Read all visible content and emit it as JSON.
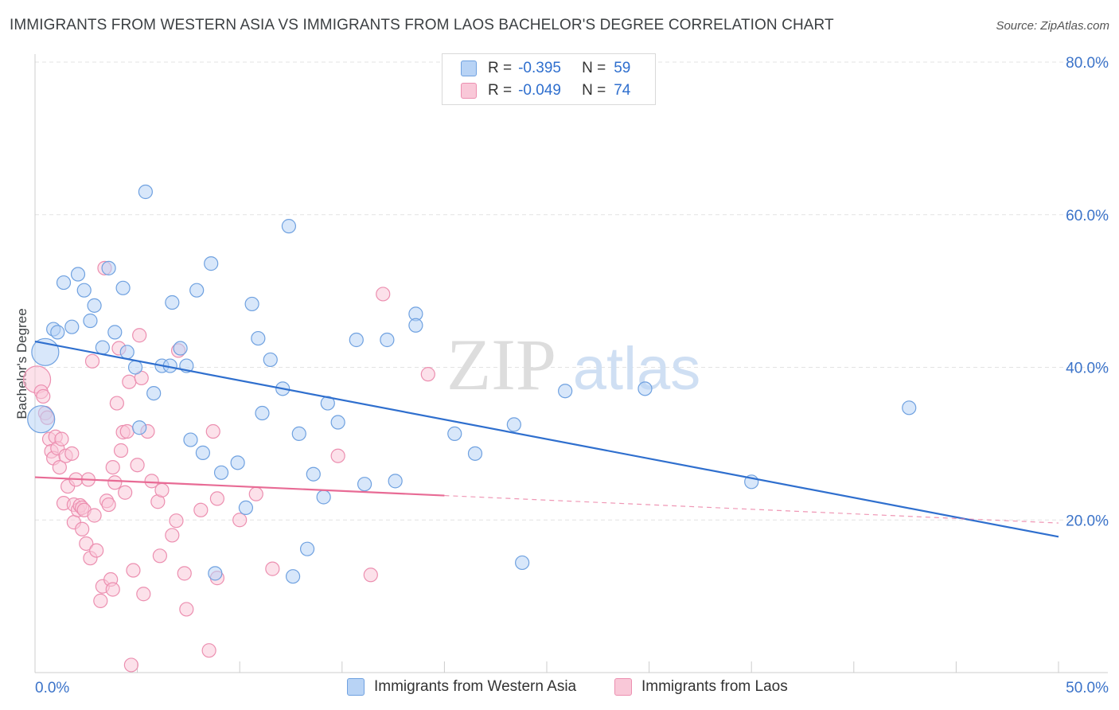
{
  "header": {
    "title": "IMMIGRANTS FROM WESTERN ASIA VS IMMIGRANTS FROM LAOS BACHELOR'S DEGREE CORRELATION CHART",
    "source": "Source: ZipAtlas.com"
  },
  "watermark": {
    "zip": "ZIP",
    "atlas": "atlas"
  },
  "stats": {
    "blue": {
      "r_label": "R =",
      "r_value": "-0.395",
      "n_label": "N =",
      "n_value": "59"
    },
    "pink": {
      "r_label": "R =",
      "r_value": "-0.049",
      "n_label": "N =",
      "n_value": "74"
    }
  },
  "legend": {
    "blue_label": "Immigrants from Western Asia",
    "pink_label": "Immigrants from Laos"
  },
  "colors": {
    "blue_fill": "#b8d3f5",
    "blue_stroke": "#6fa1e0",
    "blue_line": "#2f6fce",
    "pink_fill": "#f9c8d8",
    "pink_stroke": "#ec8fb0",
    "pink_line": "#e86b95",
    "grid": "#e3e3e3",
    "tick_label": "#3b73c9"
  },
  "chart_data": {
    "type": "scatter",
    "title": "IMMIGRANTS FROM WESTERN ASIA VS IMMIGRANTS FROM LAOS BACHELOR'S DEGREE CORRELATION CHART",
    "xlabel": "",
    "ylabel": "Bachelor's Degree",
    "xlim": [
      0,
      50
    ],
    "ylim": [
      0,
      80
    ],
    "x_tick_labels": [
      {
        "value": 0,
        "label": "0.0%"
      },
      {
        "value": 50,
        "label": "50.0%"
      }
    ],
    "x_minor_ticks": [
      0,
      5,
      10,
      15,
      20,
      25,
      30,
      35,
      40,
      45,
      50
    ],
    "y_ticks": [
      {
        "value": 20,
        "label": "20.0%"
      },
      {
        "value": 40,
        "label": "40.0%"
      },
      {
        "value": 60,
        "label": "60.0%"
      },
      {
        "value": 80,
        "label": "80.0%"
      }
    ],
    "grid": true,
    "legend_position": "bottom-center",
    "series": [
      {
        "name": "Immigrants from Western Asia",
        "color": "blue",
        "trend": {
          "x": [
            0,
            50
          ],
          "y": [
            43.4,
            17.8
          ],
          "dashed_from": null
        },
        "points": [
          {
            "x": 0.3,
            "y": 33.2,
            "big": true
          },
          {
            "x": 0.5,
            "y": 42.0,
            "big": true
          },
          {
            "x": 0.9,
            "y": 45.0
          },
          {
            "x": 1.1,
            "y": 44.6
          },
          {
            "x": 1.4,
            "y": 51.1
          },
          {
            "x": 1.8,
            "y": 45.3
          },
          {
            "x": 2.1,
            "y": 52.2
          },
          {
            "x": 2.4,
            "y": 50.1
          },
          {
            "x": 2.7,
            "y": 46.1
          },
          {
            "x": 2.9,
            "y": 48.1
          },
          {
            "x": 3.3,
            "y": 42.6
          },
          {
            "x": 3.6,
            "y": 53.0
          },
          {
            "x": 3.9,
            "y": 44.6
          },
          {
            "x": 4.3,
            "y": 50.4
          },
          {
            "x": 4.5,
            "y": 42.0
          },
          {
            "x": 4.9,
            "y": 40.0
          },
          {
            "x": 5.1,
            "y": 32.1
          },
          {
            "x": 5.4,
            "y": 63.0
          },
          {
            "x": 5.8,
            "y": 36.6
          },
          {
            "x": 6.2,
            "y": 40.2
          },
          {
            "x": 6.6,
            "y": 40.2
          },
          {
            "x": 6.7,
            "y": 48.5
          },
          {
            "x": 7.1,
            "y": 42.5
          },
          {
            "x": 7.4,
            "y": 40.2
          },
          {
            "x": 7.6,
            "y": 30.5
          },
          {
            "x": 7.9,
            "y": 50.1
          },
          {
            "x": 8.2,
            "y": 28.8
          },
          {
            "x": 8.6,
            "y": 53.6
          },
          {
            "x": 8.8,
            "y": 13.0
          },
          {
            "x": 9.1,
            "y": 26.2
          },
          {
            "x": 9.9,
            "y": 27.5
          },
          {
            "x": 10.3,
            "y": 21.6
          },
          {
            "x": 10.6,
            "y": 48.3
          },
          {
            "x": 10.9,
            "y": 43.8
          },
          {
            "x": 11.1,
            "y": 34.0
          },
          {
            "x": 11.5,
            "y": 41.0
          },
          {
            "x": 12.1,
            "y": 37.2
          },
          {
            "x": 12.4,
            "y": 58.5
          },
          {
            "x": 12.6,
            "y": 12.6
          },
          {
            "x": 12.9,
            "y": 31.3
          },
          {
            "x": 13.3,
            "y": 16.2
          },
          {
            "x": 13.6,
            "y": 26.0
          },
          {
            "x": 14.1,
            "y": 23.0
          },
          {
            "x": 14.3,
            "y": 35.3
          },
          {
            "x": 14.8,
            "y": 32.8
          },
          {
            "x": 15.7,
            "y": 43.6
          },
          {
            "x": 16.1,
            "y": 24.7
          },
          {
            "x": 17.2,
            "y": 43.6
          },
          {
            "x": 17.6,
            "y": 25.1
          },
          {
            "x": 18.6,
            "y": 47.0
          },
          {
            "x": 18.6,
            "y": 45.5
          },
          {
            "x": 20.5,
            "y": 31.3
          },
          {
            "x": 21.5,
            "y": 28.7
          },
          {
            "x": 23.4,
            "y": 32.5
          },
          {
            "x": 23.8,
            "y": 14.4
          },
          {
            "x": 25.9,
            "y": 36.9
          },
          {
            "x": 29.8,
            "y": 37.2
          },
          {
            "x": 35.0,
            "y": 25.0
          },
          {
            "x": 42.7,
            "y": 34.7
          }
        ]
      },
      {
        "name": "Immigrants from Laos",
        "color": "pink",
        "trend": {
          "x": [
            0,
            50
          ],
          "y": [
            25.6,
            19.6
          ],
          "dashed_from": 20
        },
        "points": [
          {
            "x": 0.1,
            "y": 38.4,
            "big": true
          },
          {
            "x": 0.3,
            "y": 36.8
          },
          {
            "x": 0.4,
            "y": 36.2
          },
          {
            "x": 0.5,
            "y": 34.0
          },
          {
            "x": 0.6,
            "y": 33.4
          },
          {
            "x": 0.7,
            "y": 30.6
          },
          {
            "x": 0.8,
            "y": 29.0
          },
          {
            "x": 0.9,
            "y": 28.1
          },
          {
            "x": 1.0,
            "y": 30.9
          },
          {
            "x": 1.1,
            "y": 29.4
          },
          {
            "x": 1.2,
            "y": 26.9
          },
          {
            "x": 1.3,
            "y": 30.6
          },
          {
            "x": 1.4,
            "y": 22.2
          },
          {
            "x": 1.5,
            "y": 28.4
          },
          {
            "x": 1.6,
            "y": 24.4
          },
          {
            "x": 1.8,
            "y": 28.7
          },
          {
            "x": 1.9,
            "y": 22.0
          },
          {
            "x": 1.9,
            "y": 19.7
          },
          {
            "x": 2.0,
            "y": 25.3
          },
          {
            "x": 2.1,
            "y": 21.3
          },
          {
            "x": 2.2,
            "y": 21.9
          },
          {
            "x": 2.3,
            "y": 21.6
          },
          {
            "x": 2.3,
            "y": 18.8
          },
          {
            "x": 2.4,
            "y": 21.3
          },
          {
            "x": 2.5,
            "y": 16.9
          },
          {
            "x": 2.6,
            "y": 25.3
          },
          {
            "x": 2.7,
            "y": 15.0
          },
          {
            "x": 2.8,
            "y": 40.8
          },
          {
            "x": 2.9,
            "y": 20.6
          },
          {
            "x": 3.0,
            "y": 16.0
          },
          {
            "x": 3.2,
            "y": 9.4
          },
          {
            "x": 3.3,
            "y": 11.3
          },
          {
            "x": 3.4,
            "y": 53.0
          },
          {
            "x": 3.5,
            "y": 22.5
          },
          {
            "x": 3.6,
            "y": 22.0
          },
          {
            "x": 3.7,
            "y": 12.2
          },
          {
            "x": 3.8,
            "y": 10.9
          },
          {
            "x": 3.8,
            "y": 26.9
          },
          {
            "x": 3.9,
            "y": 24.9
          },
          {
            "x": 4.0,
            "y": 35.3
          },
          {
            "x": 4.1,
            "y": 42.5
          },
          {
            "x": 4.2,
            "y": 29.1
          },
          {
            "x": 4.3,
            "y": 31.5
          },
          {
            "x": 4.4,
            "y": 23.6
          },
          {
            "x": 4.5,
            "y": 31.6
          },
          {
            "x": 4.6,
            "y": 38.1
          },
          {
            "x": 4.7,
            "y": 1.0
          },
          {
            "x": 4.8,
            "y": 13.4
          },
          {
            "x": 5.0,
            "y": 27.2
          },
          {
            "x": 5.1,
            "y": 44.2
          },
          {
            "x": 5.2,
            "y": 38.6
          },
          {
            "x": 5.3,
            "y": 10.3
          },
          {
            "x": 5.5,
            "y": 31.6
          },
          {
            "x": 5.7,
            "y": 25.1
          },
          {
            "x": 6.0,
            "y": 22.4
          },
          {
            "x": 6.1,
            "y": 15.3
          },
          {
            "x": 6.2,
            "y": 23.9
          },
          {
            "x": 6.7,
            "y": 18.0
          },
          {
            "x": 6.9,
            "y": 19.9
          },
          {
            "x": 7.3,
            "y": 13.0
          },
          {
            "x": 7.4,
            "y": 8.3
          },
          {
            "x": 8.1,
            "y": 21.3
          },
          {
            "x": 8.5,
            "y": 2.9
          },
          {
            "x": 8.7,
            "y": 31.6
          },
          {
            "x": 8.9,
            "y": 12.4
          },
          {
            "x": 8.9,
            "y": 22.8
          },
          {
            "x": 10.0,
            "y": 20.0
          },
          {
            "x": 10.8,
            "y": 23.4
          },
          {
            "x": 11.6,
            "y": 13.6
          },
          {
            "x": 14.8,
            "y": 28.4
          },
          {
            "x": 16.4,
            "y": 12.8
          },
          {
            "x": 17.0,
            "y": 49.6
          },
          {
            "x": 19.2,
            "y": 39.1
          },
          {
            "x": 7.0,
            "y": 42.2
          }
        ]
      }
    ]
  }
}
